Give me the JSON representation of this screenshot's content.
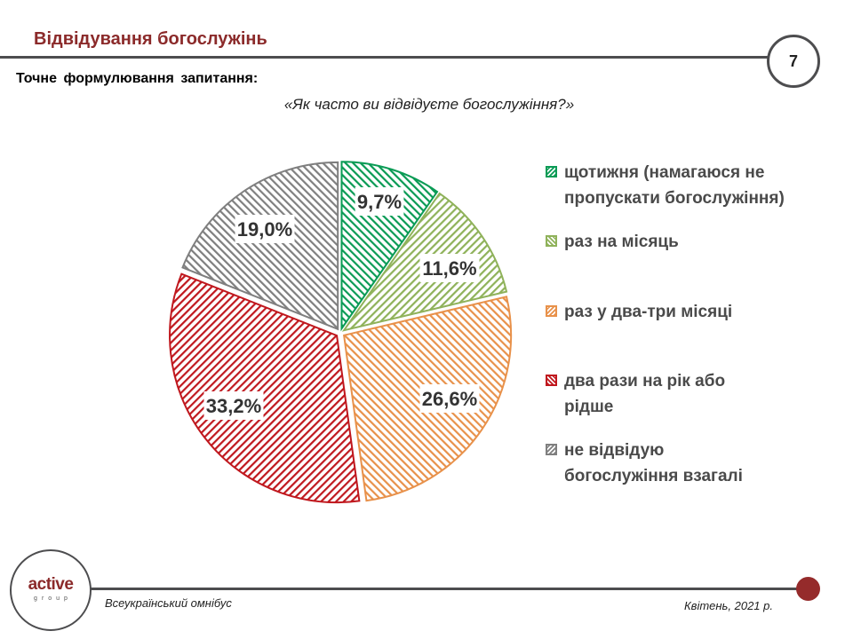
{
  "header": {
    "title": "Відвідування богослужінь",
    "page_number": "7"
  },
  "question": {
    "label": "Точне формулювання  запитання:",
    "text": "«Як часто ви відвідуєте богослужіння?»"
  },
  "colors": {
    "brand": "#8b2a2a",
    "line": "#4d4d4f",
    "footer_dot": "#952b2b"
  },
  "chart_data": {
    "type": "pie",
    "title": "«Як часто ви відвідуєте богослужіння?»",
    "start_angle_deg": 0,
    "direction": "clockwise",
    "exploded": true,
    "fill_style": "diagonal-hatch",
    "legend_position": "right",
    "categories": [
      "щотижня (намагаюся не пропускати богослужіння)",
      "раз на місяць",
      "раз у два-три місяці",
      "два рази на рік або рідше",
      "не відвідую богослужіння взагалі"
    ],
    "values": [
      9.7,
      11.6,
      26.6,
      33.2,
      19.0
    ],
    "labels": [
      "9,7%",
      "11,6%",
      "26,6%",
      "33,2%",
      "19,0%"
    ],
    "colors": [
      "#0a9b55",
      "#8fb25a",
      "#e8914a",
      "#c0181e",
      "#7f7f7f"
    ],
    "hatch_direction": [
      "\\",
      "/",
      "\\",
      "/",
      "\\"
    ]
  },
  "legend": {
    "items": [
      {
        "label": "щотижня (намагаюся не пропускати богослужіння)",
        "color": "#0a9b55"
      },
      {
        "label": "раз на місяць",
        "color": "#8fb25a"
      },
      {
        "label": "раз у два-три місяці",
        "color": "#e8914a"
      },
      {
        "label": "два рази на рік або рідше",
        "color": "#c0181e"
      },
      {
        "label": "не відвідую богослужіння взагалі",
        "color": "#7f7f7f"
      }
    ]
  },
  "footer": {
    "logo_main": "active",
    "logo_sub": "group",
    "left_text": "Всеукраїнський омнібус",
    "right_text": "Квітень, 2021 р."
  }
}
